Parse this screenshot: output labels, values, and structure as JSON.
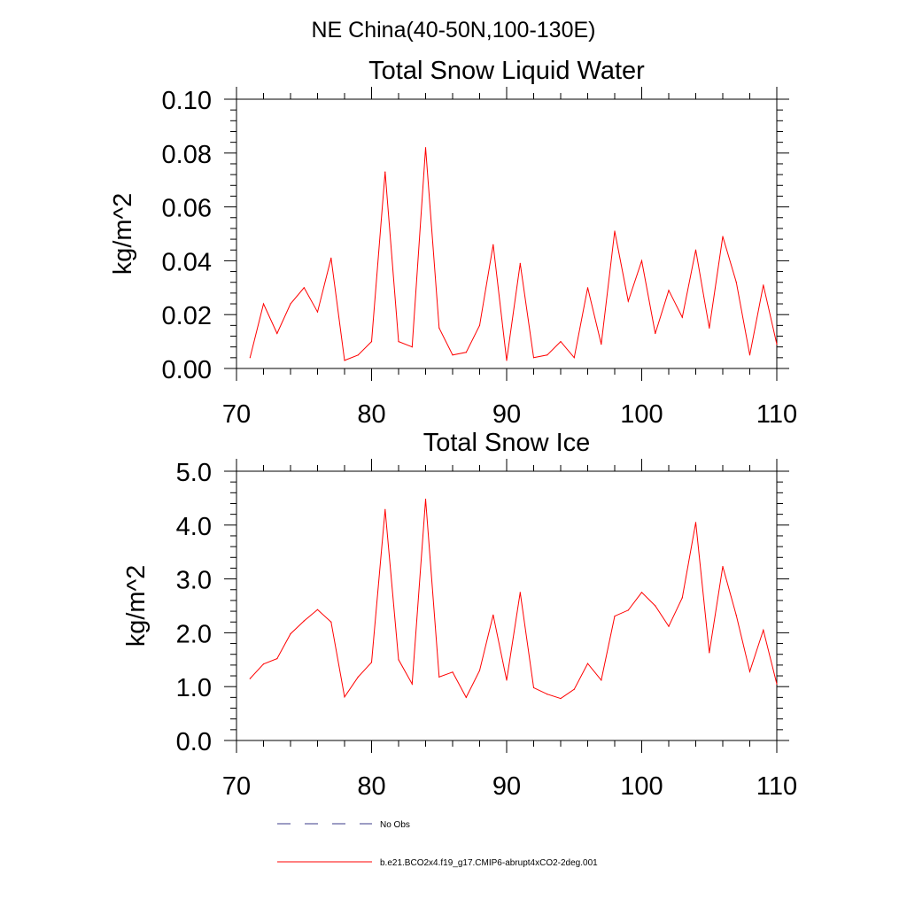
{
  "figure": {
    "title": "NE China(40-50N,100-130E)"
  },
  "legend": [
    {
      "label": "No Obs",
      "color": "#3b3b8a",
      "dash": "dashed"
    },
    {
      "label": "b.e21.BCO2x4.f19_g17.CMIP6-abrupt4xCO2-2deg.001",
      "color": "#ff0000",
      "dash": "solid"
    }
  ],
  "chart_data": [
    {
      "type": "line",
      "title": "Total Snow Liquid Water",
      "xlabel": "",
      "ylabel": "kg/m^2",
      "xlim": [
        70,
        110
      ],
      "ylim": [
        0,
        0.1
      ],
      "x_ticks": [
        70,
        80,
        90,
        100,
        110
      ],
      "y_ticks": [
        0,
        0.02,
        0.04,
        0.06,
        0.08,
        0.1
      ],
      "y_tick_labels": [
        "0.00",
        "0.02",
        "0.04",
        "0.06",
        "0.08",
        "0.10"
      ],
      "grid": false,
      "series": [
        {
          "name": "b.e21.BCO2x4.f19_g17.CMIP6-abrupt4xCO2-2deg.001",
          "color": "#ff0000",
          "x": [
            71,
            72,
            73,
            74,
            75,
            76,
            77,
            78,
            79,
            80,
            81,
            82,
            83,
            84,
            85,
            86,
            87,
            88,
            89,
            90,
            91,
            92,
            93,
            94,
            95,
            96,
            97,
            98,
            99,
            100,
            101,
            102,
            103,
            104,
            105,
            106,
            107,
            108,
            109,
            110
          ],
          "values": [
            0.004,
            0.024,
            0.013,
            0.024,
            0.03,
            0.021,
            0.041,
            0.003,
            0.005,
            0.01,
            0.073,
            0.01,
            0.008,
            0.082,
            0.015,
            0.005,
            0.006,
            0.016,
            0.046,
            0.003,
            0.039,
            0.004,
            0.005,
            0.01,
            0.004,
            0.03,
            0.009,
            0.051,
            0.025,
            0.04,
            0.013,
            0.029,
            0.019,
            0.044,
            0.015,
            0.049,
            0.032,
            0.005,
            0.031,
            0.009
          ]
        }
      ]
    },
    {
      "type": "line",
      "title": "Total Snow Ice",
      "xlabel": "",
      "ylabel": "kg/m^2",
      "xlim": [
        70,
        110
      ],
      "ylim": [
        0,
        5
      ],
      "x_ticks": [
        70,
        80,
        90,
        100,
        110
      ],
      "y_ticks": [
        0,
        1,
        2,
        3,
        4,
        5
      ],
      "y_tick_labels": [
        "0.0",
        "1.0",
        "2.0",
        "3.0",
        "4.0",
        "5.0"
      ],
      "grid": false,
      "series": [
        {
          "name": "b.e21.BCO2x4.f19_g17.CMIP6-abrupt4xCO2-2deg.001",
          "color": "#ff0000",
          "x": [
            71,
            72,
            73,
            74,
            75,
            76,
            77,
            78,
            79,
            80,
            81,
            82,
            83,
            84,
            85,
            86,
            87,
            88,
            89,
            90,
            91,
            92,
            93,
            94,
            95,
            96,
            97,
            98,
            99,
            100,
            101,
            102,
            103,
            104,
            105,
            106,
            107,
            108,
            109,
            110
          ],
          "values": [
            1.15,
            1.42,
            1.52,
            1.98,
            2.22,
            2.43,
            2.2,
            0.81,
            1.18,
            1.45,
            4.29,
            1.5,
            1.05,
            4.48,
            1.18,
            1.27,
            0.8,
            1.3,
            2.33,
            1.12,
            2.75,
            0.98,
            0.86,
            0.78,
            0.95,
            1.43,
            1.12,
            2.31,
            2.42,
            2.75,
            2.5,
            2.12,
            2.65,
            4.05,
            1.63,
            3.23,
            2.32,
            1.28,
            2.05,
            1.05
          ]
        }
      ]
    }
  ]
}
